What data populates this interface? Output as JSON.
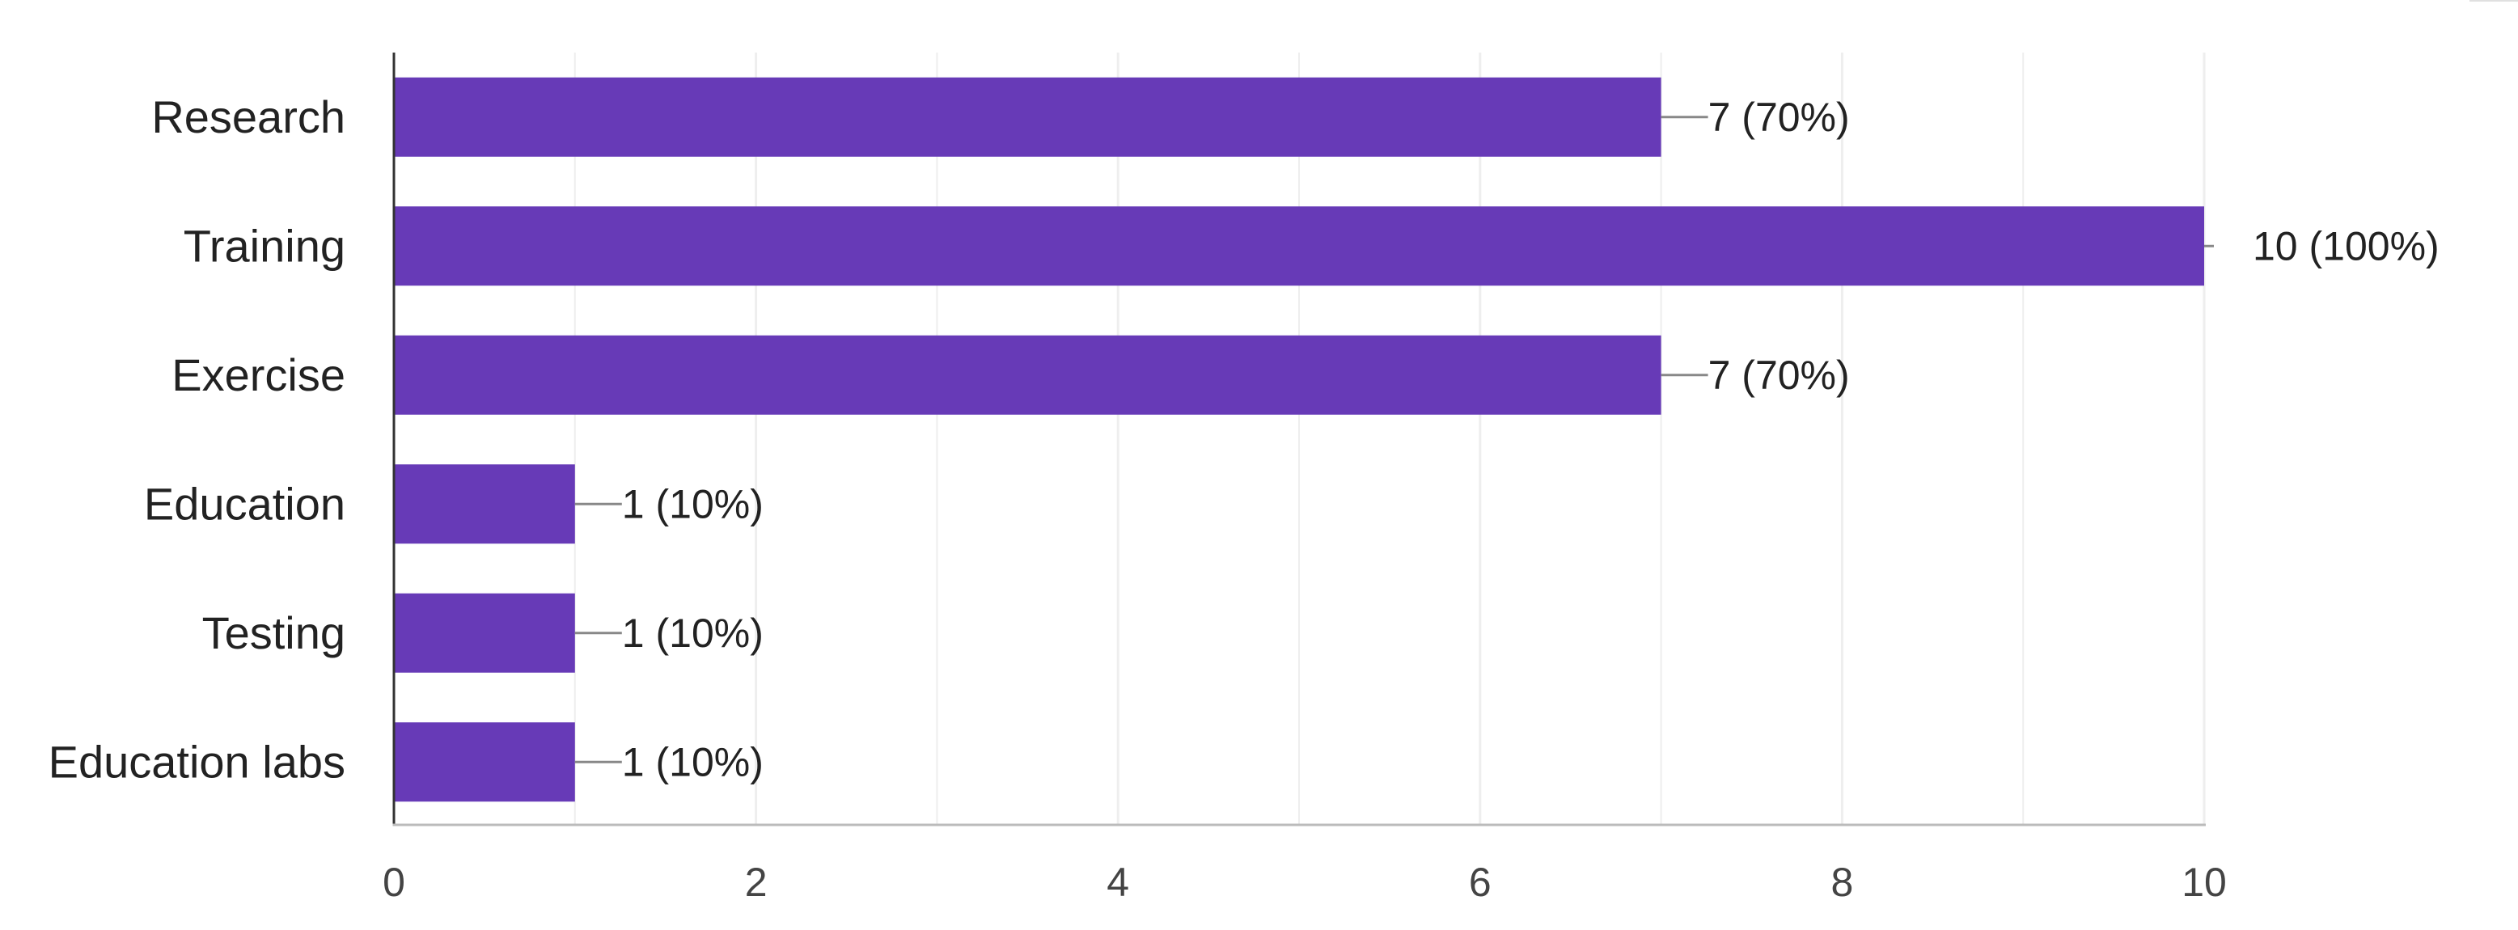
{
  "chart_data": {
    "type": "bar",
    "orientation": "horizontal",
    "title": "",
    "xlabel": "",
    "ylabel": "",
    "categories": [
      "Research",
      "Training",
      "Exercise",
      "Education",
      "Testing",
      "Education labs"
    ],
    "values": [
      7,
      10,
      7,
      1,
      1,
      1
    ],
    "data_labels": [
      "7 (70%)",
      "10 (100%)",
      "7 (70%)",
      "1 (10%)",
      "1 (10%)",
      "1 (10%)"
    ],
    "xlim": [
      0,
      10
    ],
    "x_ticks": [
      0,
      2,
      4,
      6,
      8,
      10
    ],
    "x_tick_labels": [
      "0",
      "2",
      "4",
      "6",
      "8",
      "10"
    ],
    "grid": true,
    "legend": "none",
    "colors": {
      "bar": "#673ab7",
      "grid": "#eeeeee",
      "axis": "#333333",
      "leader_line": "#888888",
      "text": "#222222"
    }
  }
}
